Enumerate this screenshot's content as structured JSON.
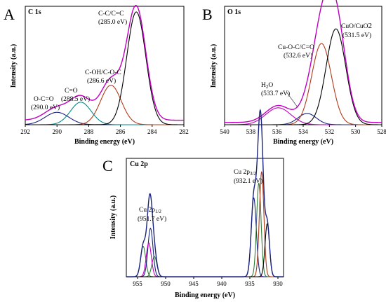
{
  "chart_data": [
    {
      "type": "line",
      "panel_letter": "A",
      "panel_label": "C 1s",
      "xlabel": "Binding energy (eV)",
      "ylabel": "Intensity (a.u.)",
      "xlim": [
        292,
        282
      ],
      "xticks": [
        292,
        290,
        288,
        286,
        284,
        282
      ],
      "ylim": [
        0,
        1.05
      ],
      "peaks": [
        {
          "center": 290.0,
          "sigma": 0.75,
          "amp": 0.11,
          "color": "#1a237e"
        },
        {
          "center": 288.5,
          "sigma": 0.65,
          "amp": 0.2,
          "color": "#008b8b"
        },
        {
          "center": 286.6,
          "sigma": 0.65,
          "amp": 0.35,
          "color": "#b03a1a"
        },
        {
          "center": 285.0,
          "sigma": 0.6,
          "amp": 1.0,
          "color": "#000000"
        }
      ],
      "envelope_color": "#c000c0",
      "baseline": 0.04,
      "annotations": [
        {
          "lines": [
            "O-C=O",
            "(290.0 eV)"
          ],
          "x": 290.0
        },
        {
          "lines": [
            "C=O",
            "(288.5 eV)"
          ],
          "x": 288.5
        },
        {
          "lines": [
            "C-OH/C-O-C",
            "(286.6 eV)"
          ],
          "x": 286.6
        },
        {
          "lines": [
            "C-C/C=C",
            "(285.0 eV)"
          ],
          "x": 285.0
        }
      ]
    },
    {
      "type": "line",
      "panel_letter": "B",
      "panel_label": "O 1s",
      "xlabel": "Binding energy (eV)",
      "ylabel": "Intensity (a.u.)",
      "xlim": [
        540,
        528
      ],
      "xticks": [
        540,
        538,
        536,
        534,
        532,
        530,
        528
      ],
      "ylim": [
        0,
        1.05
      ],
      "peaks": [
        {
          "center": 535.9,
          "sigma": 0.95,
          "amp": 0.15,
          "color": "#c000c0"
        },
        {
          "center": 533.7,
          "sigma": 0.7,
          "amp": 0.1,
          "color": "#1a237e"
        },
        {
          "center": 532.6,
          "sigma": 0.75,
          "amp": 0.72,
          "color": "#b03a1a"
        },
        {
          "center": 531.5,
          "sigma": 0.75,
          "amp": 0.85,
          "color": "#000000"
        }
      ],
      "envelope_color": "#c000c0",
      "baseline": 0.02,
      "annotations": [
        {
          "lines": [
            "H2O",
            "(533.7 eV)"
          ],
          "x": 533.7
        },
        {
          "lines": [
            "Cu-O-C/C=O",
            "(532.6 eV)"
          ],
          "x": 532.6
        },
        {
          "lines": [
            "CuO/CuO2",
            "(531.5 eV)"
          ],
          "x": 531.5
        }
      ]
    },
    {
      "type": "line",
      "panel_letter": "C",
      "panel_label": "Cu 2p",
      "xlabel": "Binding energy (eV)",
      "ylabel": "Intensity (a.u.)",
      "xlim": [
        957,
        929
      ],
      "xticks": [
        955,
        950,
        945,
        940,
        935,
        930
      ],
      "ylim": [
        0,
        1.05
      ],
      "peaks": [
        {
          "center": 954.0,
          "sigma": 0.45,
          "amp": 0.27,
          "color": "#2e7d32"
        },
        {
          "center": 952.0,
          "sigma": 0.45,
          "amp": 0.18,
          "color": "#2e7d32"
        },
        {
          "center": 952.7,
          "sigma": 0.45,
          "amp": 0.43,
          "color": "#1a237e"
        },
        {
          "center": 953.0,
          "sigma": 0.45,
          "amp": 0.3,
          "color": "#c000c0"
        },
        {
          "center": 934.3,
          "sigma": 0.45,
          "amp": 0.7,
          "color": "#1a237e"
        },
        {
          "center": 933.4,
          "sigma": 0.4,
          "amp": 0.83,
          "color": "#2e7d32"
        },
        {
          "center": 932.9,
          "sigma": 0.4,
          "amp": 0.93,
          "color": "#b03a1a"
        },
        {
          "center": 931.9,
          "sigma": 0.4,
          "amp": 0.47,
          "color": "#000000"
        }
      ],
      "envelope_color": "#1a237e",
      "baseline": 0.0,
      "annotations": [
        {
          "lines": [
            "Cu 2p1/2",
            "(951.7 eV)"
          ],
          "x": 952.7
        },
        {
          "lines": [
            "Cu 2p3/2",
            "(932.1 eV)"
          ],
          "x": 933.0
        }
      ]
    }
  ]
}
